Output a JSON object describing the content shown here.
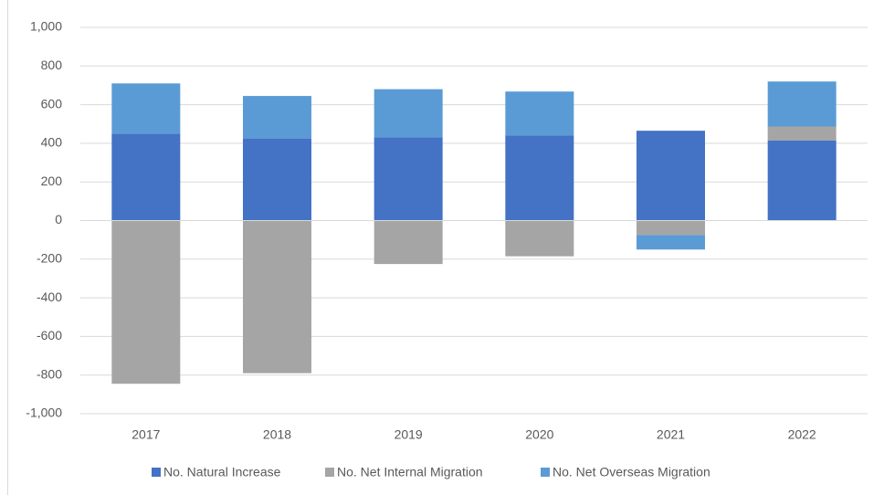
{
  "chart_data": {
    "type": "bar",
    "stacked": true,
    "categories": [
      "2017",
      "2018",
      "2019",
      "2020",
      "2021",
      "2022"
    ],
    "series": [
      {
        "name": "No. Natural Increase",
        "color": "#4472c4",
        "values": [
          450,
          425,
          430,
          440,
          465,
          415
        ]
      },
      {
        "name": "No. Net Internal Migration",
        "color": "#a5a5a5",
        "values": [
          -845,
          -790,
          -225,
          -185,
          -75,
          72
        ]
      },
      {
        "name": "No. Net Overseas Migration",
        "color": "#5b9bd5",
        "values": [
          260,
          220,
          250,
          228,
          -75,
          233
        ]
      }
    ],
    "ylim": [
      -1000,
      1000
    ],
    "yticks": [
      {
        "value": -1000,
        "label": "-1,000"
      },
      -800,
      -600,
      -400,
      -200,
      0,
      200,
      400,
      600,
      800,
      {
        "value": 1000,
        "label": "1,000"
      }
    ],
    "grid": true,
    "legend": "bottom"
  }
}
